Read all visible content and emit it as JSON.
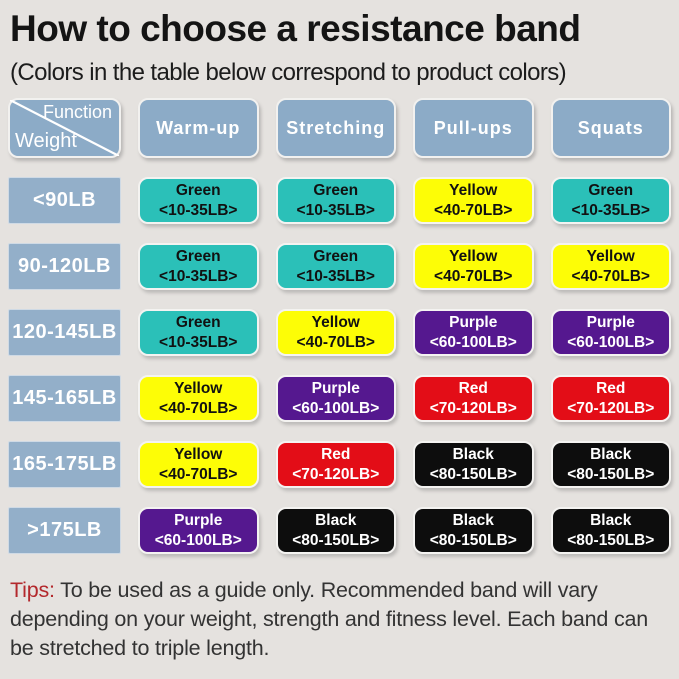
{
  "title": "How to choose a resistance band",
  "subtitle": "(Colors in the table below correspond to product colors)",
  "chart_data": {
    "type": "table",
    "corner": {
      "top_label": "Function",
      "bottom_label": "Weight"
    },
    "columns": [
      "Warm-up",
      "Stretching",
      "Pull-ups",
      "Squats"
    ],
    "rows": [
      {
        "weight": "<90LB",
        "cells": [
          [
            "Green",
            "<10-35LB>"
          ],
          [
            "Green",
            "<10-35LB>"
          ],
          [
            "Yellow",
            "<40-70LB>"
          ],
          [
            "Green",
            "<10-35LB>"
          ]
        ]
      },
      {
        "weight": "90-120LB",
        "cells": [
          [
            "Green",
            "<10-35LB>"
          ],
          [
            "Green",
            "<10-35LB>"
          ],
          [
            "Yellow",
            "<40-70LB>"
          ],
          [
            "Yellow",
            "<40-70LB>"
          ]
        ]
      },
      {
        "weight": "120-145LB",
        "cells": [
          [
            "Green",
            "<10-35LB>"
          ],
          [
            "Yellow",
            "<40-70LB>"
          ],
          [
            "Purple",
            "<60-100LB>"
          ],
          [
            "Purple",
            "<60-100LB>"
          ]
        ]
      },
      {
        "weight": "145-165LB",
        "cells": [
          [
            "Yellow",
            "<40-70LB>"
          ],
          [
            "Purple",
            "<60-100LB>"
          ],
          [
            "Red",
            "<70-120LB>"
          ],
          [
            "Red",
            "<70-120LB>"
          ]
        ]
      },
      {
        "weight": "165-175LB",
        "cells": [
          [
            "Yellow",
            "<40-70LB>"
          ],
          [
            "Red",
            "<70-120LB>"
          ],
          [
            "Black",
            "<80-150LB>"
          ],
          [
            "Black",
            "<80-150LB>"
          ]
        ]
      },
      {
        "weight": ">175LB",
        "cells": [
          [
            "Purple",
            "<60-100LB>"
          ],
          [
            "Black",
            "<80-150LB>"
          ],
          [
            "Black",
            "<80-150LB>"
          ],
          [
            "Black",
            "<80-150LB>"
          ]
        ]
      }
    ],
    "band_colors": {
      "Green": {
        "bg": "#2bc0b8",
        "text": "#111111"
      },
      "Yellow": {
        "bg": "#fdfd06",
        "text": "#111111"
      },
      "Purple": {
        "bg": "#55188f",
        "text": "#ffffff"
      },
      "Red": {
        "bg": "#e30d17",
        "text": "#ffffff"
      },
      "Black": {
        "bg": "#0d0d0d",
        "text": "#ffffff"
      }
    },
    "header_color": "#8cabc7",
    "row_header_color": "#93afc9"
  },
  "tips": {
    "label": "Tips:",
    "label_color": "#b3282c",
    "text": " To be used as a guide only. Recommended band will vary depending on your weight, strength and fitness level. Each band can be stretched to triple length."
  }
}
